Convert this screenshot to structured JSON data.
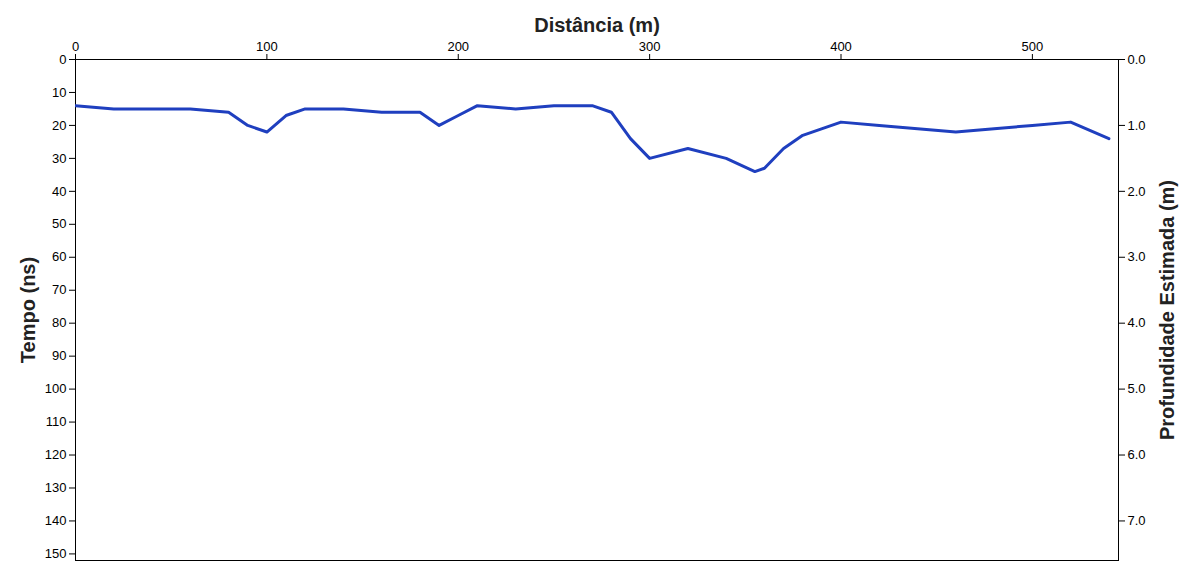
{
  "chart_data": {
    "type": "line",
    "x_label": "Distância (m)",
    "y_label": "Tempo (ns)",
    "y2_label": "Profundidade Estimada (m)",
    "x": [
      0,
      20,
      40,
      60,
      80,
      90,
      100,
      110,
      120,
      140,
      160,
      180,
      190,
      200,
      210,
      230,
      250,
      270,
      280,
      290,
      300,
      320,
      340,
      355,
      360,
      370,
      380,
      400,
      420,
      440,
      460,
      480,
      500,
      520,
      540
    ],
    "values": [
      14,
      15,
      15,
      15,
      16,
      20,
      22,
      17,
      15,
      15,
      16,
      16,
      20,
      17,
      14,
      15,
      14,
      14,
      16,
      24,
      30,
      27,
      30,
      34,
      33,
      27,
      23,
      19,
      20,
      21,
      22,
      21,
      20,
      19,
      24
    ],
    "color": "#1f3fbf",
    "xlim": [
      0,
      545
    ],
    "xticks": [
      0,
      100,
      200,
      300,
      400,
      500
    ],
    "ylim": [
      0,
      152
    ],
    "yticks": [
      0,
      10,
      20,
      30,
      40,
      50,
      60,
      70,
      80,
      90,
      100,
      110,
      120,
      130,
      140,
      150
    ],
    "y2lim": [
      0,
      7.6
    ],
    "y2ticks": [
      0,
      1,
      2,
      3,
      4,
      5,
      6,
      7
    ],
    "grid": false
  }
}
